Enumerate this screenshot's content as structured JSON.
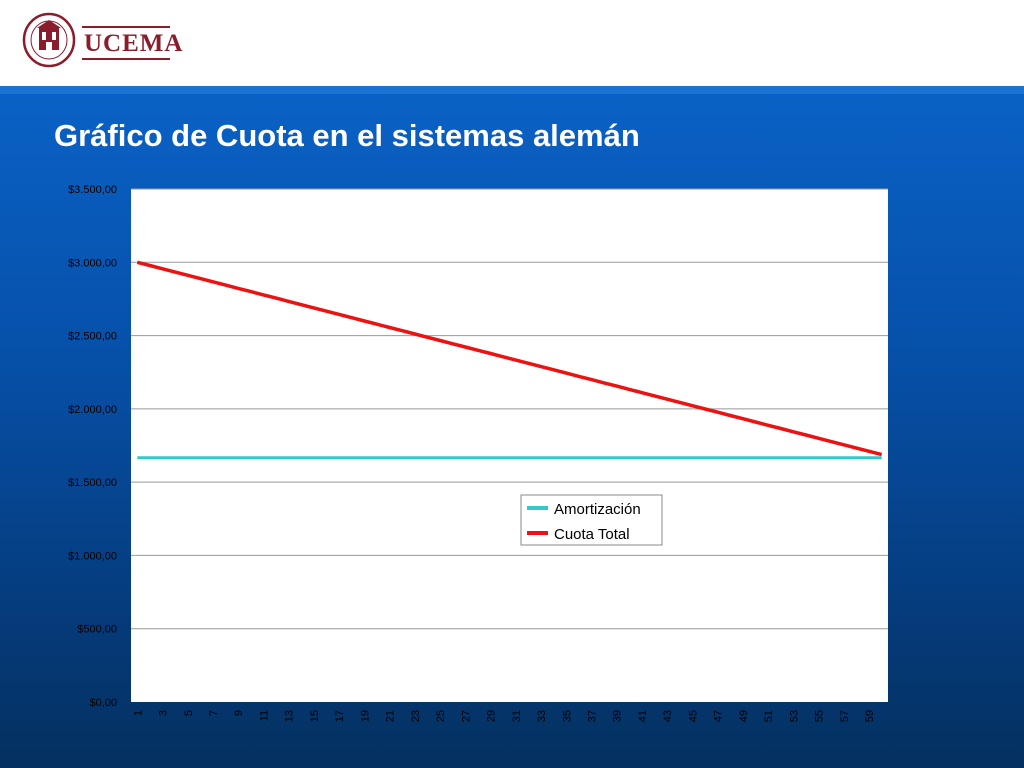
{
  "title": "Gráfico de Cuota en el sistemas alemán",
  "brand": {
    "name": "UCEMA",
    "seal_text": "UNIVERSIDAD DEL CEMA",
    "seal_year": "MCMLXXVIII"
  },
  "colors": {
    "amortizacion": "#33c9c9",
    "cuota_total": "#ee1111",
    "plot_bg": "#ffffff",
    "grid": "#999999"
  },
  "chart_data": {
    "type": "line",
    "title": "",
    "xlabel": "",
    "ylabel": "",
    "x": [
      1,
      2,
      3,
      4,
      5,
      6,
      7,
      8,
      9,
      10,
      11,
      12,
      13,
      14,
      15,
      16,
      17,
      18,
      19,
      20,
      21,
      22,
      23,
      24,
      25,
      26,
      27,
      28,
      29,
      30,
      31,
      32,
      33,
      34,
      35,
      36,
      37,
      38,
      39,
      40,
      41,
      42,
      43,
      44,
      45,
      46,
      47,
      48,
      49,
      50,
      51,
      52,
      53,
      54,
      55,
      56,
      57,
      58,
      59,
      60
    ],
    "x_tick_labels": [
      "1",
      "3",
      "5",
      "7",
      "9",
      "11",
      "13",
      "15",
      "17",
      "19",
      "21",
      "23",
      "25",
      "27",
      "29",
      "31",
      "33",
      "35",
      "37",
      "39",
      "41",
      "43",
      "45",
      "47",
      "49",
      "51",
      "53",
      "55",
      "57",
      "59"
    ],
    "y_tick_labels": [
      "$0,00",
      "$500,00",
      "$1.000,00",
      "$1.500,00",
      "$2.000,00",
      "$2.500,00",
      "$3.000,00",
      "$3.500,00"
    ],
    "ylim": [
      0,
      3500
    ],
    "grid": true,
    "legend_position": "right-middle",
    "series": [
      {
        "name": "Amortización",
        "start": 1666.67,
        "end": 1666.67
      },
      {
        "name": "Cuota Total",
        "start": 3000,
        "end": 1688
      }
    ]
  }
}
